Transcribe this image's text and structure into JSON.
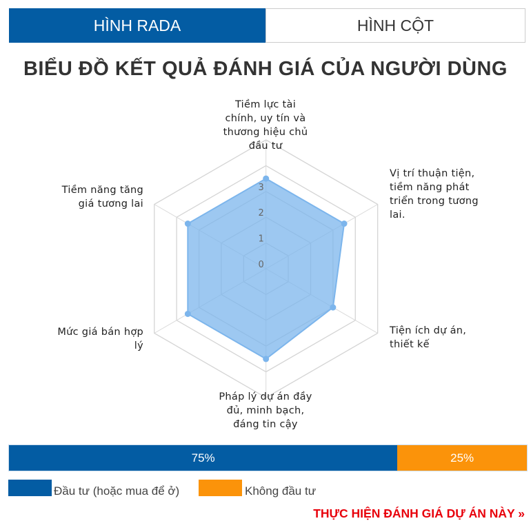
{
  "tabs": [
    {
      "label": "HÌNH RADA",
      "active": true
    },
    {
      "label": "HÌNH CỘT",
      "active": false
    }
  ],
  "chart_data": {
    "type": "radar",
    "title": "BIỂU ĐỒ KẾT QUẢ ĐÁNH GIÁ CỦA NGƯỜI DÙNG",
    "categories": [
      "Tiềm lực tài chính, uy tín và thương hiệu chủ đầu tư",
      "Vị trí thuận tiện, tiềm năng phát triển trong tương lai.",
      "Tiện ích dự án, thiết kế",
      "Pháp lý dự án đầy đủ, minh bạch, đáng tin cậy",
      "Mức giá bán hợp lý",
      "Tiềm năng tăng giá tương lai"
    ],
    "category_lines": [
      [
        "Tiềm lực tài",
        "chính, uy tín và",
        "thương hiệu chủ",
        "đầu tư"
      ],
      [
        "Vị trí thuận tiện,",
        "tiềm năng phát",
        "triển trong tương",
        "lai."
      ],
      [
        "Tiện ích dự án,",
        "thiết kế"
      ],
      [
        "Pháp lý dự án đầy",
        "đủ, minh bạch,",
        "đáng tin cậy"
      ],
      [
        "Mức giá bán hợp",
        "lý"
      ],
      [
        "Tiềm năng tăng",
        "giá tương lai"
      ]
    ],
    "values": [
      3.5,
      3.5,
      3,
      3.5,
      3.5,
      3.5
    ],
    "rlim": [
      0,
      5
    ],
    "tick_labels": [
      "0",
      "1",
      "2",
      "3"
    ],
    "color": "#7cb5ec",
    "grid": true
  },
  "summary_bar": {
    "segments": [
      {
        "label": "75%",
        "value": 75,
        "color": "#035ca3"
      },
      {
        "label": "25%",
        "value": 25,
        "color": "#fb930a"
      }
    ]
  },
  "legend": [
    {
      "label": "Đầu tư (hoặc mua để ở)",
      "color": "#035ca3"
    },
    {
      "label": "Không đầu tư",
      "color": "#fb930a"
    }
  ],
  "cta": "THỰC HIỆN ĐÁNH GIÁ DỰ ÁN NÀY »"
}
